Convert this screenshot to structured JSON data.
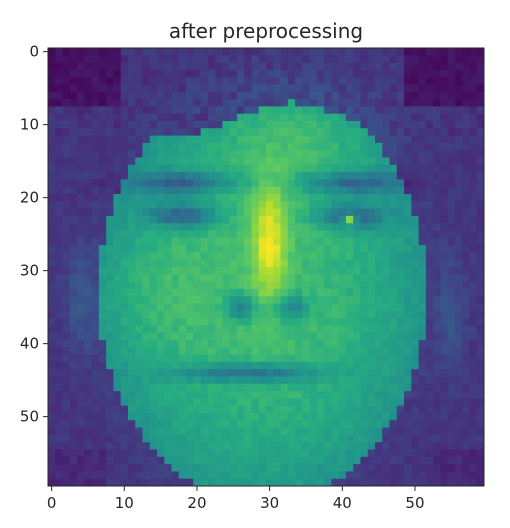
{
  "chart_data": {
    "type": "heatmap",
    "title": "after preprocessing",
    "xlabel": "",
    "ylabel": "",
    "grid": false,
    "colormap": "viridis",
    "image_size": [
      60,
      60
    ],
    "xlim": [
      -0.5,
      59.5
    ],
    "ylim": [
      59.5,
      -0.5
    ],
    "xticks": [
      0,
      10,
      20,
      30,
      40,
      50
    ],
    "yticks": [
      0,
      10,
      20,
      30,
      40,
      50
    ],
    "xtick_labels": [
      "0",
      "10",
      "20",
      "30",
      "40",
      "50"
    ],
    "ytick_labels": [
      "0",
      "10",
      "20",
      "30",
      "40",
      "50"
    ],
    "colors": {
      "axis": "#262626",
      "background": "#ffffff",
      "colormap_low": "#440154",
      "colormap_mid": "#21918c",
      "colormap_high": "#fde725"
    }
  }
}
